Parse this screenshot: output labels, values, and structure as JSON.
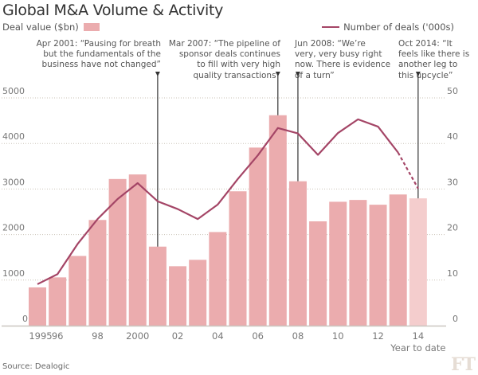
{
  "header": {
    "title": "Global M&A Volume & Activity",
    "left_legend": "Deal value ($bn)",
    "right_legend": "Number of deals ('000s)"
  },
  "annotations": [
    {
      "year": 2001,
      "text": "Apr 2001: “Pausing for breath\nbut the fundamentals of the\nbusiness have not changed”"
    },
    {
      "year": 2007,
      "text": "Mar 2007: “The pipeline of\nsponsor deals continues\nto fill with very high\nquality transactions”"
    },
    {
      "year": 2008,
      "text": "Jun 2008: “We’re\nvery, very busy right\nnow. There is evidence\nof a turn”"
    },
    {
      "year": 2014,
      "text": "Oct 2014: “It\nfeels like there is\nanother leg to\nthis upcycle”"
    }
  ],
  "footer": {
    "source": "Source: Dealogic",
    "logo": "FT"
  },
  "colors": {
    "bar": "#ebacae",
    "bar_ytd": "#f4cdcd",
    "line": "#a44566",
    "grid": "#c9c2b6",
    "axis": "#c9c6c0",
    "marker": "#333333",
    "tick_text": "#777777"
  },
  "chart_data": {
    "type": "bar",
    "title": "Global M&A Volume & Activity",
    "categories": [
      1995,
      1996,
      1997,
      1998,
      1999,
      2000,
      2001,
      2002,
      2003,
      2004,
      2005,
      2006,
      2007,
      2008,
      2009,
      2010,
      2011,
      2012,
      2013,
      2014
    ],
    "x_tick_labels": [
      {
        "year": 1995,
        "label": "1995"
      },
      {
        "year": 1996,
        "label": "96"
      },
      {
        "year": 1998,
        "label": "98"
      },
      {
        "year": 2000,
        "label": "2000"
      },
      {
        "year": 2002,
        "label": "02"
      },
      {
        "year": 2004,
        "label": "04"
      },
      {
        "year": 2006,
        "label": "06"
      },
      {
        "year": 2008,
        "label": "08"
      },
      {
        "year": 2010,
        "label": "10"
      },
      {
        "year": 2012,
        "label": "12"
      },
      {
        "year": 2014,
        "label": "14"
      }
    ],
    "x_note": "Year to date",
    "series": [
      {
        "name": "Deal value ($bn)",
        "type": "bar",
        "axis": "left",
        "values": [
          840,
          1060,
          1530,
          2320,
          3220,
          3320,
          1735,
          1305,
          1445,
          2055,
          2950,
          3910,
          4620,
          3170,
          2290,
          2720,
          2760,
          2655,
          2880,
          2795
        ],
        "ytd_last": true
      },
      {
        "name": "Number of deals ('000s)",
        "type": "line",
        "axis": "right",
        "values": [
          9.1,
          11.3,
          17.9,
          23.4,
          27.8,
          31.3,
          27.3,
          25.6,
          23.4,
          26.6,
          32.2,
          37.4,
          43.4,
          42.2,
          37.5,
          42.3,
          45.3,
          43.7,
          38.0,
          30.1
        ],
        "dashed_last_segment": true
      }
    ],
    "y_left": {
      "label": "Deal value ($bn)",
      "range": [
        0,
        5000
      ],
      "ticks": [
        0,
        1000,
        2000,
        3000,
        4000,
        5000
      ]
    },
    "y_right": {
      "label": "Number of deals ('000s)",
      "range": [
        0,
        50
      ],
      "ticks": [
        0,
        10,
        20,
        30,
        40,
        50
      ]
    },
    "grid": true,
    "legend": "top"
  }
}
